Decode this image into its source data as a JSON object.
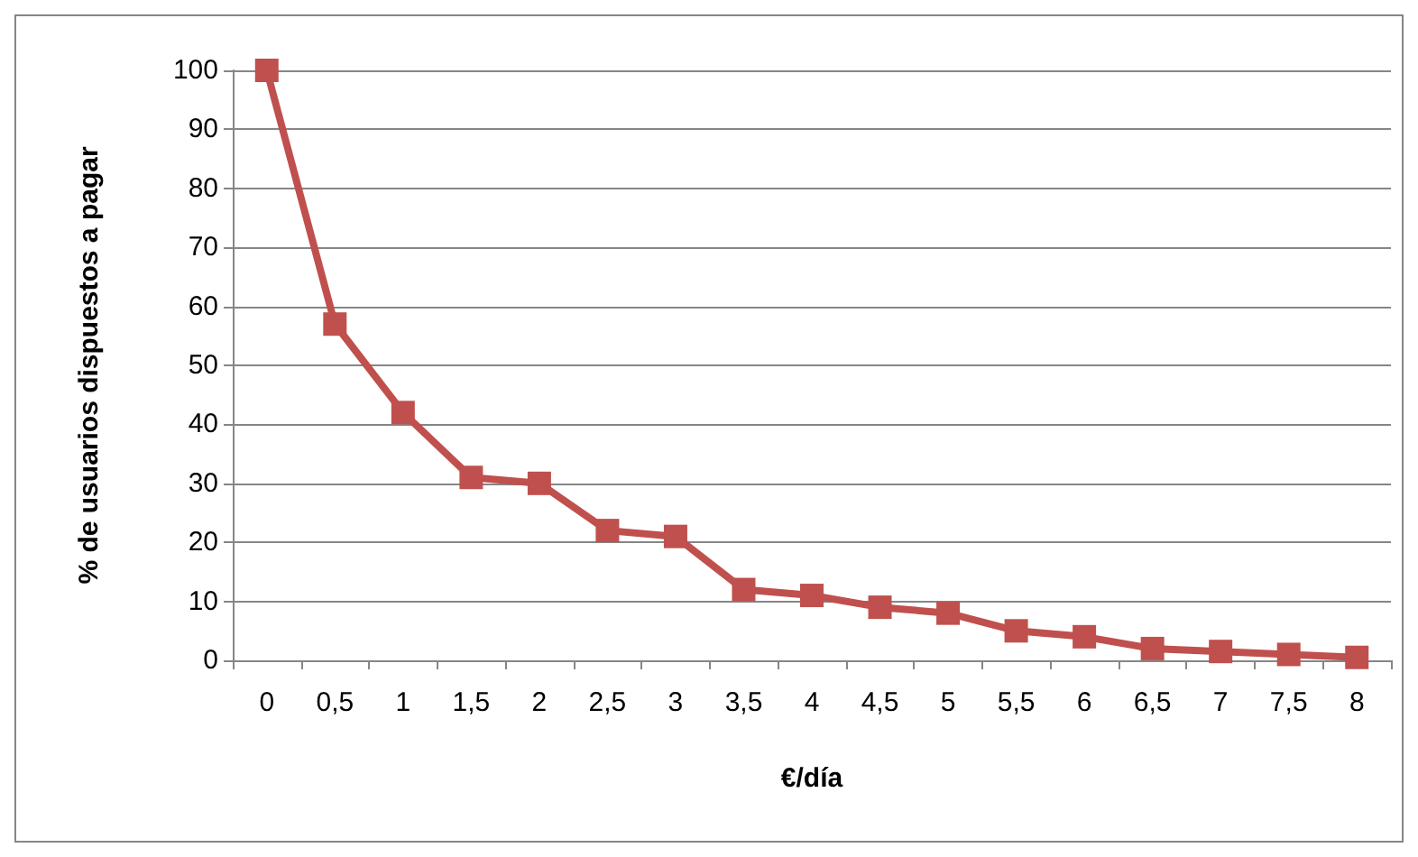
{
  "chart_data": {
    "type": "line",
    "xlabel": "€/día",
    "ylabel": "% de usuarios dispuestos a pagar",
    "categories": [
      "0",
      "0,5",
      "1",
      "1,5",
      "2",
      "2,5",
      "3",
      "3,5",
      "4",
      "4,5",
      "5",
      "5,5",
      "6",
      "6,5",
      "7",
      "7,5",
      "8"
    ],
    "series": [
      {
        "color": "#c0504d",
        "values": [
          100,
          57,
          42,
          31,
          30,
          22,
          21,
          12,
          11,
          9,
          8,
          5,
          4,
          2,
          1.5,
          1,
          0.5
        ]
      }
    ],
    "ylim": [
      0,
      100
    ],
    "yticks": [
      0,
      10,
      20,
      30,
      40,
      50,
      60,
      70,
      80,
      90,
      100
    ],
    "grid": "y",
    "marker": "square"
  }
}
